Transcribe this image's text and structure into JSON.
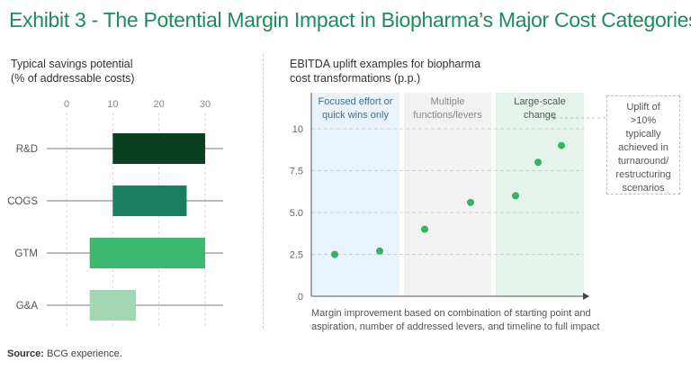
{
  "title": "Exhibit 3 - The Potential Margin Impact in Biopharma’s Major Cost Categories",
  "source": {
    "label": "Source:",
    "text": "BCG experience."
  },
  "chart_data": [
    {
      "type": "bar",
      "subtype": "floating-range",
      "title_line1": "Typical savings potential",
      "title_line2": "(% of addressable costs)",
      "xlabel": "",
      "ylabel": "",
      "xlim": [
        0,
        30
      ],
      "xticks": [
        "0",
        "10",
        "20",
        "30"
      ],
      "xtick_values": [
        0,
        10,
        20,
        30
      ],
      "grid": true,
      "categories": [
        "R&D",
        "COGS",
        "GTM",
        "G&A"
      ],
      "ranges": [
        {
          "category": "R&D",
          "low": 10,
          "high": 30,
          "color": "#0b3f22"
        },
        {
          "category": "COGS",
          "low": 10,
          "high": 26,
          "color": "#1b7f5f"
        },
        {
          "category": "GTM",
          "low": 5,
          "high": 30,
          "color": "#3cb870"
        },
        {
          "category": "G&A",
          "low": 5,
          "high": 15,
          "color": "#a3d6b2"
        }
      ]
    },
    {
      "type": "scatter",
      "title_line1": "EBITDA uplift examples for biopharma",
      "title_line2": "cost transformations (p.p.)",
      "ylim": [
        0,
        10
      ],
      "yticks": [
        "0",
        "2.5",
        "5.0",
        "7.5",
        "10"
      ],
      "ytick_values": [
        0,
        2.5,
        5,
        7.5,
        10
      ],
      "grid": true,
      "xlabel_line1": "Margin improvement based on combination of starting point and",
      "xlabel_line2": "aspiration, number of addressed levers, and timeline to full impact",
      "zones": [
        {
          "line1": "Focused effort or",
          "line2": "quick wins only",
          "color": "#e8f3fc",
          "text_color": "#3d6f8f"
        },
        {
          "line1": "Multiple",
          "line2": "functions/levers",
          "color": "#f2f2f2",
          "text_color": "#888888"
        },
        {
          "line1": "Large-scale",
          "line2": "change",
          "color": "#e6f3ea",
          "text_color": "#555555"
        }
      ],
      "points": [
        {
          "zone": 0,
          "y": 2.5
        },
        {
          "zone": 0,
          "y": 2.7
        },
        {
          "zone": 1,
          "y": 4.0
        },
        {
          "zone": 1,
          "y": 5.6
        },
        {
          "zone": 2,
          "y": 6.0
        },
        {
          "zone": 2,
          "y": 8.0
        },
        {
          "zone": 2,
          "y": 9.0
        }
      ],
      "point_color": "#34b364",
      "annotation": [
        "Uplift of",
        ">10%",
        "typically",
        "achieved in",
        "turnaround/",
        "restructuring",
        "scenarios"
      ]
    }
  ]
}
